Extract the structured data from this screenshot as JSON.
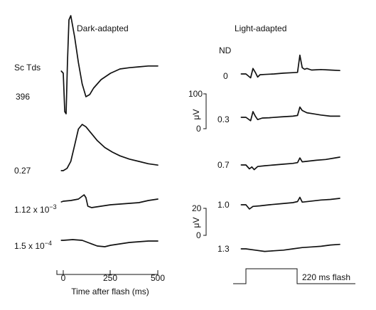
{
  "chart_data": [
    {
      "type": "line",
      "title": "Dark-adapted",
      "xlabel": "Time after flash (ms)",
      "xlim": [
        -25,
        500
      ],
      "xticks": [
        "0",
        "250",
        "500"
      ],
      "row_header": "Sc Tds",
      "series": [
        {
          "name": "396",
          "x": [
            -10,
            0,
            8,
            15,
            22,
            30,
            40,
            60,
            80,
            100,
            120,
            140,
            160,
            200,
            250,
            300,
            350,
            400,
            450,
            500
          ],
          "y": [
            0,
            -5,
            -95,
            -100,
            20,
            120,
            130,
            80,
            20,
            -30,
            -60,
            -55,
            -40,
            -20,
            -5,
            5,
            8,
            10,
            12,
            12
          ]
        },
        {
          "name": "0.27",
          "x": [
            -10,
            0,
            20,
            40,
            60,
            80,
            100,
            120,
            140,
            180,
            220,
            260,
            300,
            350,
            400,
            450,
            500
          ],
          "y": [
            0,
            0,
            5,
            20,
            55,
            90,
            100,
            95,
            85,
            65,
            50,
            40,
            32,
            25,
            20,
            15,
            12
          ]
        },
        {
          "name": "1.12 x 10−3",
          "x": [
            -10,
            0,
            40,
            80,
            100,
            110,
            120,
            130,
            150,
            200,
            250,
            300,
            350,
            400,
            450,
            500
          ],
          "y": [
            0,
            1,
            2,
            4,
            8,
            10,
            6,
            -6,
            -8,
            -6,
            -4,
            -3,
            -2,
            -1,
            2,
            4
          ]
        },
        {
          "name": "1.5 x 10−4",
          "x": [
            -10,
            0,
            50,
            100,
            140,
            180,
            220,
            250,
            300,
            350,
            400,
            450,
            500
          ],
          "y": [
            0,
            0,
            1,
            0,
            -4,
            -8,
            -9,
            -7,
            -5,
            -3,
            -2,
            -1,
            -1
          ]
        }
      ]
    },
    {
      "type": "line",
      "title": "Light-adapted",
      "stimulus_label": "220 ms flash",
      "row_header": "ND",
      "scale_bar": {
        "unit": "μV",
        "ticks": [
          "100",
          "0",
          "20",
          "0"
        ]
      },
      "series": [
        {
          "name": "0",
          "x": [
            -20,
            0,
            20,
            30,
            40,
            50,
            60,
            80,
            120,
            160,
            200,
            220,
            230,
            240,
            250,
            260,
            280,
            320,
            360,
            400
          ],
          "y": [
            0,
            0,
            -25,
            35,
            10,
            -20,
            -5,
            -3,
            0,
            5,
            8,
            10,
            120,
            40,
            30,
            35,
            25,
            28,
            25,
            22
          ]
        },
        {
          "name": "0.3",
          "x": [
            -20,
            0,
            20,
            30,
            40,
            50,
            70,
            100,
            150,
            200,
            220,
            230,
            240,
            260,
            290,
            320,
            360,
            400
          ],
          "y": [
            0,
            0,
            -15,
            25,
            5,
            -10,
            -3,
            -2,
            2,
            5,
            8,
            45,
            30,
            20,
            15,
            10,
            5,
            5
          ]
        },
        {
          "name": "0.7",
          "x": [
            -20,
            0,
            15,
            25,
            35,
            50,
            80,
            120,
            160,
            200,
            220,
            230,
            240,
            270,
            300,
            340,
            380,
            400
          ],
          "y": [
            0,
            0,
            -10,
            -5,
            -12,
            -4,
            -2,
            0,
            2,
            4,
            6,
            18,
            8,
            10,
            12,
            14,
            18,
            20
          ]
        },
        {
          "name": "1.0",
          "x": [
            -20,
            0,
            15,
            30,
            60,
            100,
            150,
            200,
            220,
            230,
            240,
            280,
            320,
            360,
            400
          ],
          "y": [
            0,
            0,
            -8,
            -3,
            -2,
            0,
            2,
            4,
            6,
            14,
            5,
            7,
            9,
            10,
            12
          ]
        },
        {
          "name": "1.3",
          "x": [
            -20,
            0,
            40,
            80,
            120,
            160,
            200,
            240,
            280,
            320,
            360,
            400
          ],
          "y": [
            0,
            0,
            -2,
            -4,
            -3,
            -2,
            0,
            2,
            3,
            4,
            6,
            7
          ]
        }
      ]
    }
  ]
}
